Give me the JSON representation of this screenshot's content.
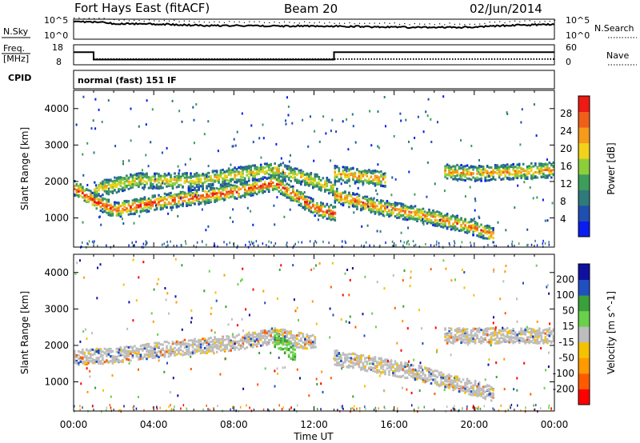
{
  "header": {
    "radar": "Fort Hays East (fitACF)",
    "beam": "Beam 20",
    "date": "02/Jun/2014"
  },
  "noise_panel": {
    "left_label": "N.Sky",
    "right_label": "N.Search",
    "left_ticks": [
      "10^5",
      "10^0"
    ],
    "right_ticks": [
      "10^5",
      "10^0"
    ]
  },
  "freq_panel": {
    "left_label_line1": "Freq.",
    "left_label_line2": "[MHz]",
    "right_label": "Nave",
    "left_ticks": [
      "18",
      "8"
    ],
    "right_ticks": [
      "60",
      "0"
    ]
  },
  "cpid_panel": {
    "label": "CPID",
    "mode": "normal (fast) 151 IF"
  },
  "xaxis": {
    "label": "Time UT",
    "ticks": [
      "00:00",
      "04:00",
      "08:00",
      "12:00",
      "16:00",
      "20:00",
      "00:00"
    ]
  },
  "colors": {
    "power": [
      "#0a1cf0",
      "#1f4fb0",
      "#2f7a7a",
      "#3c9e5a",
      "#8ccf3a",
      "#f2d21a",
      "#f59a1a",
      "#f0601a",
      "#ee1a14"
    ],
    "velocity": [
      "#ff0000",
      "#ff5a00",
      "#ff9a00",
      "#f5c200",
      "#bdbdbd",
      "#6ad04a",
      "#3aa03a",
      "#2050c0",
      "#1010a0"
    ]
  },
  "chart_data": [
    {
      "type": "line",
      "title": "N.Sky / N.Search",
      "y_scale": "log",
      "ylim": [
        1,
        100000
      ],
      "xlim_hours_ut": [
        0,
        24
      ],
      "series": [
        {
          "name": "N.Sky",
          "x": [
            0,
            2,
            4,
            6,
            8,
            10,
            12,
            14,
            16,
            18,
            20,
            22,
            24
          ],
          "values": [
            30000,
            8000,
            6000,
            3000,
            2500,
            2000,
            2000,
            1500,
            1000,
            800,
            1000,
            3000,
            5000
          ]
        },
        {
          "name": "N.Search",
          "x": [
            0,
            4,
            8,
            12,
            16,
            20,
            24
          ],
          "values": [
            20,
            20,
            20,
            20,
            20,
            20,
            20
          ]
        }
      ]
    },
    {
      "type": "line",
      "title": "Freq. / Nave",
      "ylabel": "Freq. [MHz]",
      "ylim": [
        8,
        18
      ],
      "xlim_hours_ut": [
        0,
        24
      ],
      "series": [
        {
          "name": "Freq.",
          "x": [
            0,
            1.0,
            1.0,
            13.0,
            13.0,
            24
          ],
          "values": [
            14.3,
            14.3,
            10.6,
            10.6,
            14.3,
            14.3
          ]
        },
        {
          "name": "Nave",
          "x": [
            0,
            24
          ],
          "values": [
            17,
            17
          ]
        }
      ]
    },
    {
      "type": "heatmap",
      "title": "Power",
      "ylabel": "Slant Range [km]",
      "xlabel": "Time UT",
      "xlim_hours_ut": [
        0,
        24
      ],
      "ylim": [
        200,
        4500
      ],
      "yticks": [
        1000,
        2000,
        3000,
        4000
      ],
      "colorbar": {
        "label": "Power [dB]",
        "ticks": [
          4,
          8,
          12,
          16,
          20,
          24,
          28
        ],
        "range": [
          0,
          32
        ]
      },
      "bands": [
        {
          "x": [
            0,
            1,
            2,
            4,
            6,
            8,
            10,
            11,
            12,
            13
          ],
          "range_km": [
            1850,
            1500,
            1250,
            1450,
            1600,
            1750,
            2000,
            1650,
            1300,
            1150
          ],
          "peak_db": 28
        },
        {
          "x": [
            1,
            3,
            6,
            8,
            10,
            12,
            13
          ],
          "range_km": [
            1800,
            2050,
            2050,
            2200,
            2350,
            2050,
            1850
          ],
          "peak_db": 18
        },
        {
          "x": [
            13,
            15,
            17,
            19,
            20,
            21
          ],
          "range_km": [
            1650,
            1350,
            1150,
            900,
            750,
            550
          ],
          "peak_db": 24
        },
        {
          "x": [
            13,
            14.5,
            15.5
          ],
          "range_km": [
            2250,
            2150,
            2100
          ],
          "peak_db": 22
        },
        {
          "x": [
            18.5,
            20,
            22,
            24
          ],
          "range_km": [
            2300,
            2250,
            2300,
            2350
          ],
          "peak_db": 22
        }
      ]
    },
    {
      "type": "heatmap",
      "title": "Velocity",
      "ylabel": "Slant Range [km]",
      "xlabel": "Time UT",
      "xlim_hours_ut": [
        0,
        24
      ],
      "ylim": [
        200,
        4500
      ],
      "yticks": [
        1000,
        2000,
        3000,
        4000
      ],
      "colorbar": {
        "label": "Velocity [m s^-1]",
        "ticks": [
          200,
          100,
          50,
          15,
          -15,
          -50,
          -100,
          -200
        ],
        "range": [
          -250,
          250
        ]
      },
      "bands": [
        {
          "x": [
            0,
            2,
            4,
            6,
            8,
            10,
            12
          ],
          "range_km": [
            1700,
            1750,
            1900,
            2000,
            2100,
            2300,
            2100
          ],
          "velocity": 0
        },
        {
          "x": [
            10,
            11
          ],
          "range_km": [
            2200,
            1800
          ],
          "velocity": 60
        },
        {
          "x": [
            13,
            17,
            21
          ],
          "range_km": [
            1700,
            1300,
            700
          ],
          "velocity": 0
        },
        {
          "x": [
            18.5,
            24
          ],
          "range_km": [
            2300,
            2300
          ],
          "velocity": 0
        }
      ]
    }
  ]
}
